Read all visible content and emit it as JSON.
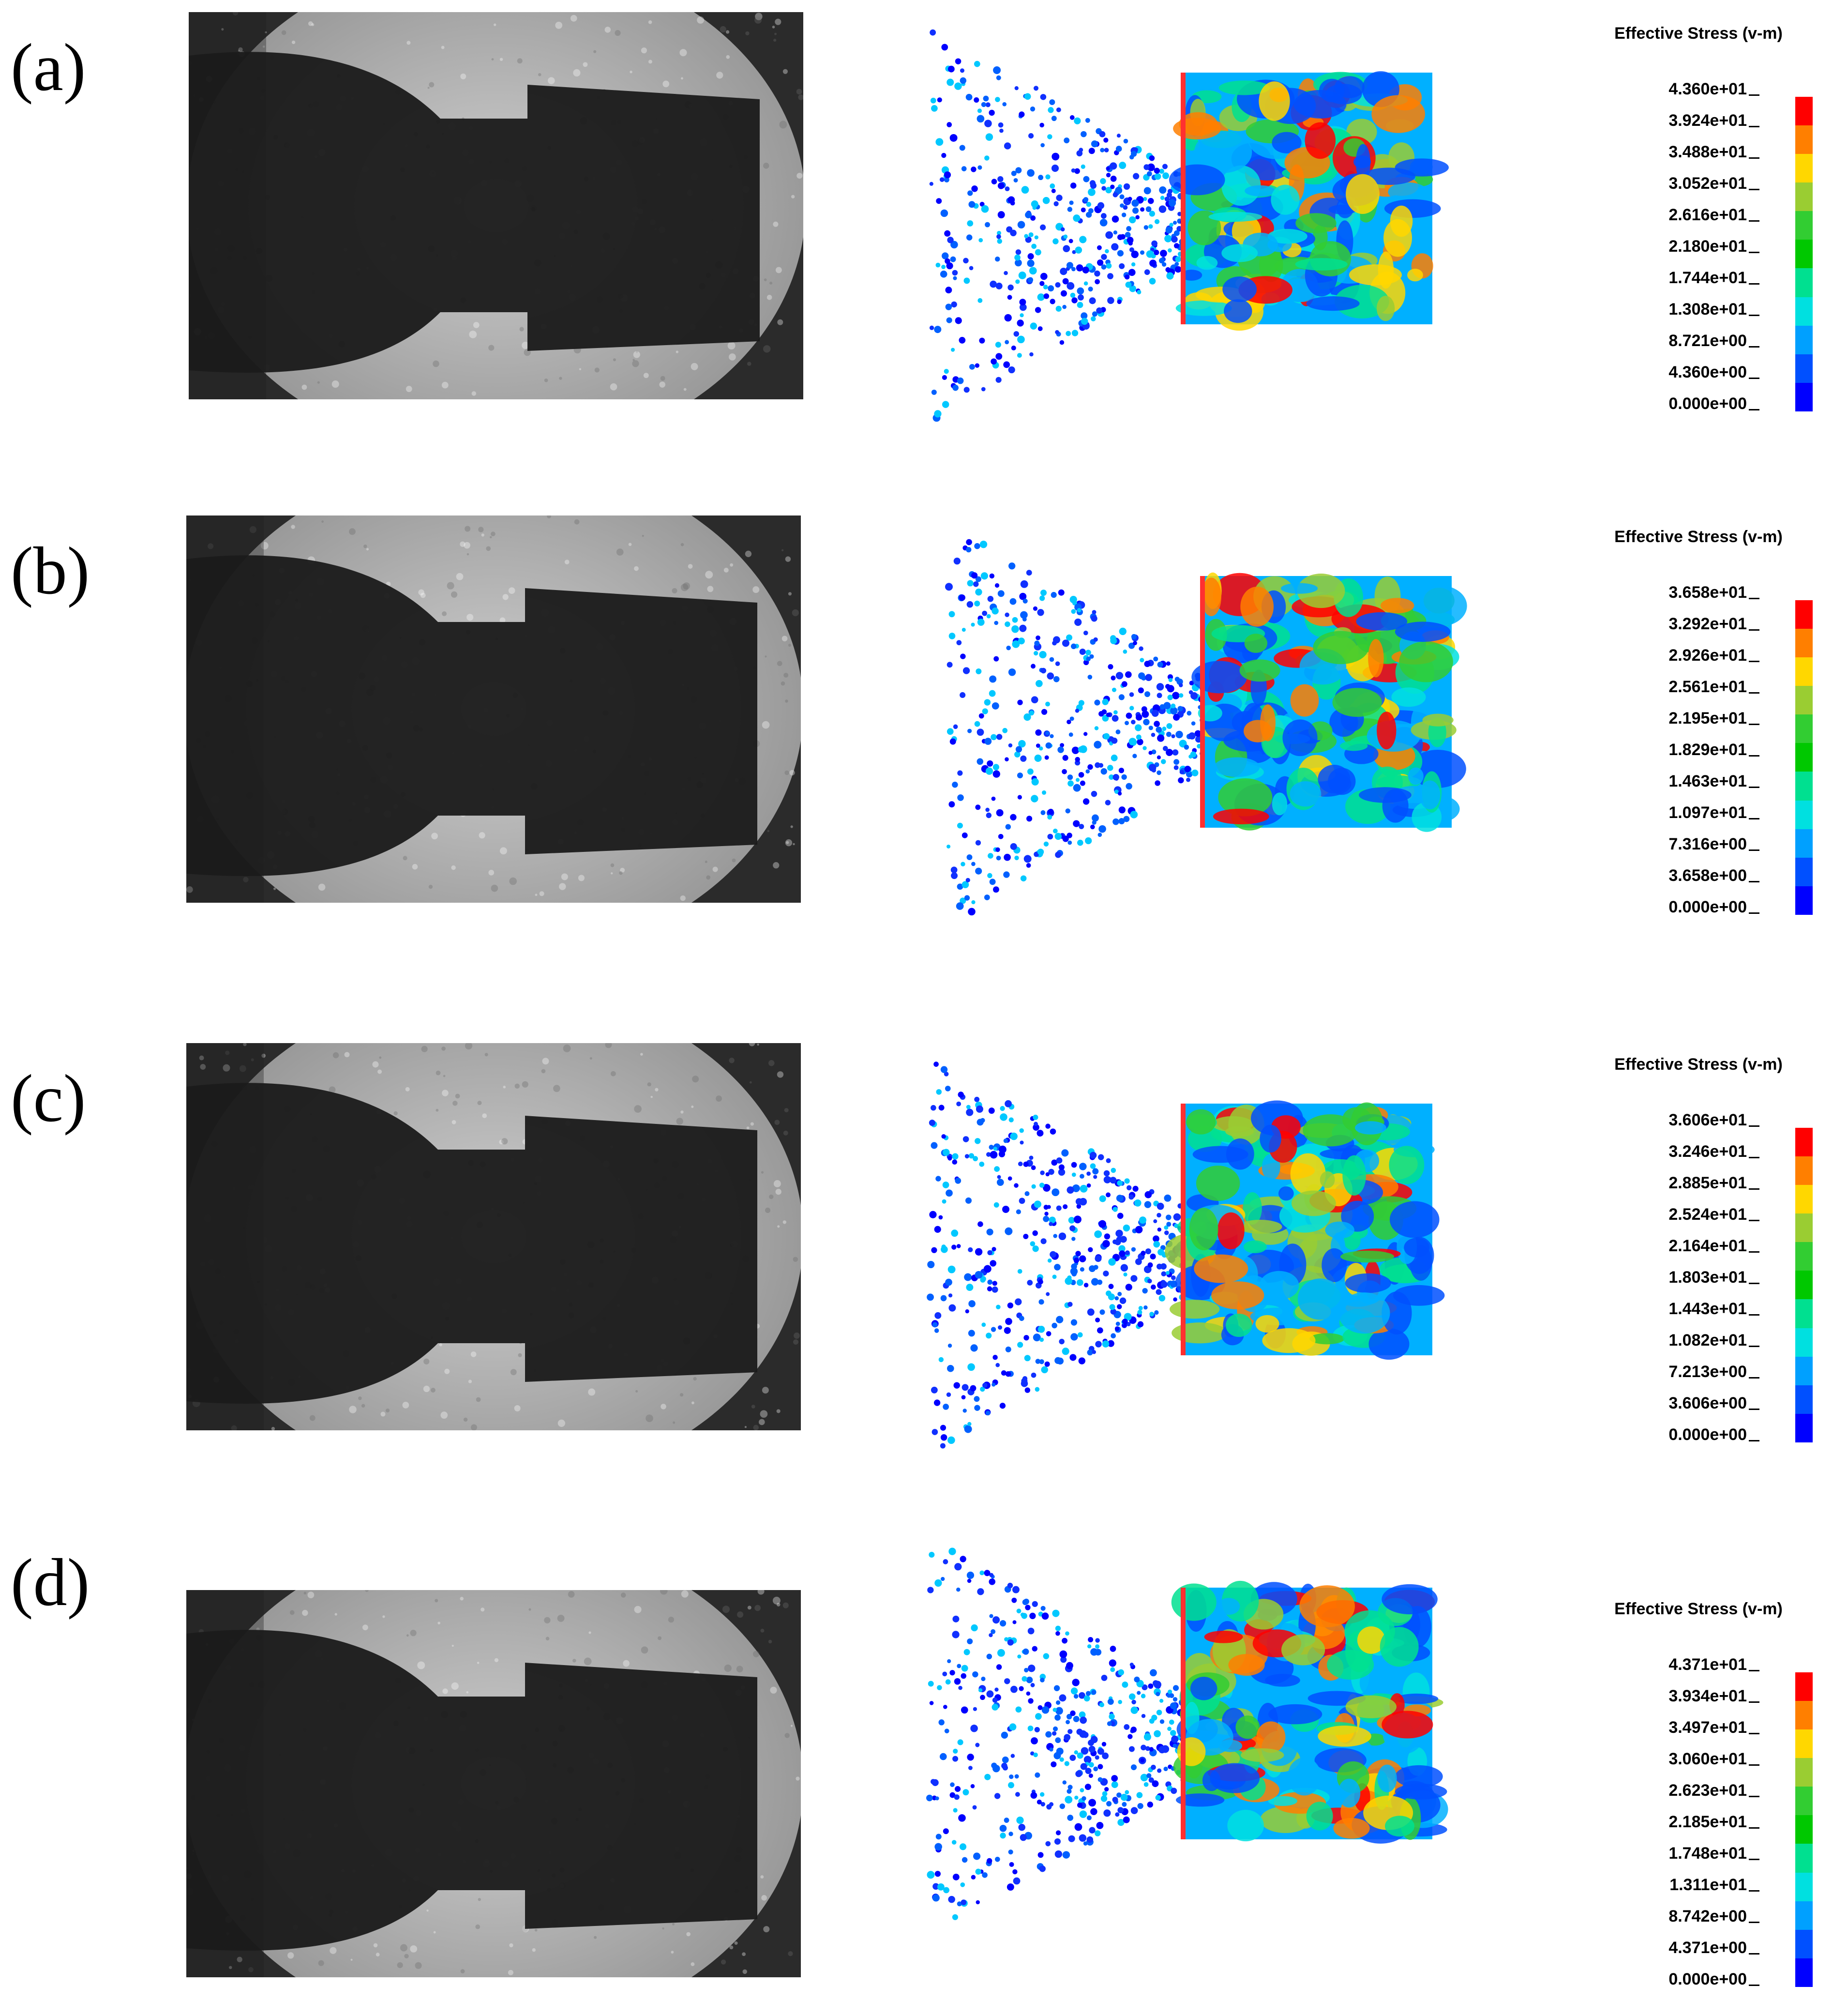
{
  "panels": [
    {
      "label": "(a)",
      "legend": {
        "title": "Effective Stress (v-m)",
        "ticks": [
          "4.360e+01",
          "3.924e+01",
          "3.488e+01",
          "3.052e+01",
          "2.616e+01",
          "2.180e+01",
          "1.744e+01",
          "1.308e+01",
          "8.721e+00",
          "4.360e+00",
          "0.000e+00"
        ]
      }
    },
    {
      "label": "(b)",
      "legend": {
        "title": "Effective Stress (v-m)",
        "ticks": [
          "3.658e+01",
          "3.292e+01",
          "2.926e+01",
          "2.561e+01",
          "2.195e+01",
          "1.829e+01",
          "1.463e+01",
          "1.097e+01",
          "7.316e+00",
          "3.658e+00",
          "0.000e+00"
        ]
      }
    },
    {
      "label": "(c)",
      "legend": {
        "title": "Effective Stress (v-m)",
        "ticks": [
          "3.606e+01",
          "3.246e+01",
          "2.885e+01",
          "2.524e+01",
          "2.164e+01",
          "1.803e+01",
          "1.443e+01",
          "1.082e+01",
          "7.213e+00",
          "3.606e+00",
          "0.000e+00"
        ]
      }
    },
    {
      "label": "(d)",
      "legend": {
        "title": "Effective Stress (v-m)",
        "ticks": [
          "4.371e+01",
          "3.934e+01",
          "3.497e+01",
          "3.060e+01",
          "2.623e+01",
          "2.185e+01",
          "1.748e+01",
          "1.311e+01",
          "8.742e+00",
          "4.371e+00",
          "0.000e+00"
        ]
      }
    }
  ],
  "colormap": [
    "#ff0000",
    "#ff7f00",
    "#ffd700",
    "#9acd32",
    "#32cd32",
    "#00c800",
    "#00e090",
    "#00e0e0",
    "#00a0ff",
    "#0050ff",
    "#0000ff"
  ]
}
